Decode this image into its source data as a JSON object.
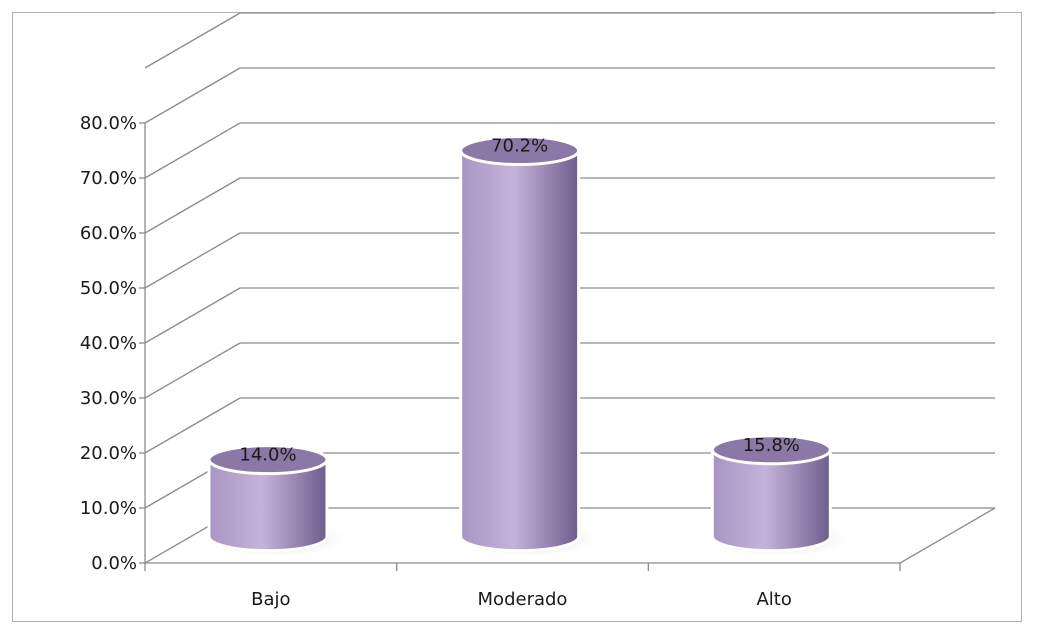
{
  "chart_data": {
    "type": "bar",
    "style": "3d-cylinder",
    "categories": [
      "Bajo",
      "Moderado",
      "Alto"
    ],
    "values": [
      14.0,
      70.2,
      15.8
    ],
    "data_labels": [
      "14.0%",
      "70.2%",
      "15.8%"
    ],
    "ylim": [
      0,
      80
    ],
    "y_ticks": [
      0,
      10,
      20,
      30,
      40,
      50,
      60,
      70,
      80
    ],
    "y_tick_labels": [
      "0.0%",
      "10.0%",
      "20.0%",
      "30.0%",
      "40.0%",
      "50.0%",
      "60.0%",
      "70.0%",
      "80.0%"
    ],
    "grid": true,
    "legend": "none",
    "title": "",
    "xlabel": "",
    "ylabel": "",
    "colors": {
      "bar_light": "#c4b3d9",
      "bar_mid": "#a895c4",
      "bar_dark": "#6e5d8c",
      "bar_top": "#8a78a6",
      "grid": "#8c8c8c"
    }
  }
}
